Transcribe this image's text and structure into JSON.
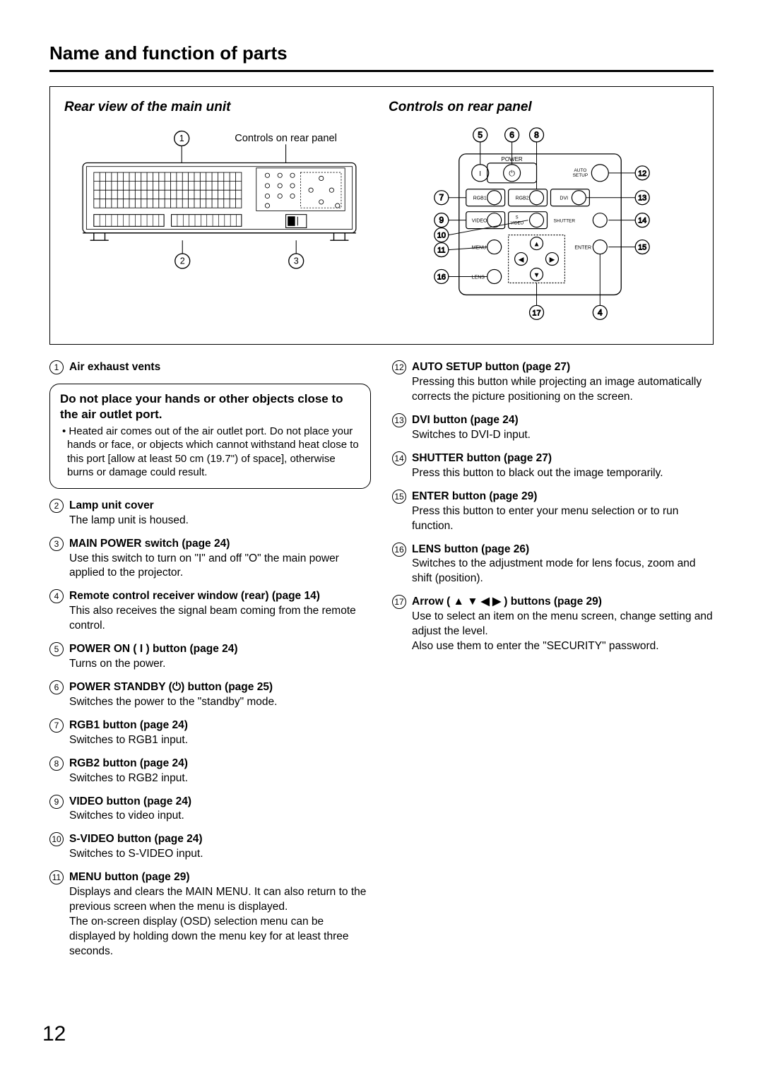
{
  "page_title": "Name and function of parts",
  "page_number": "12",
  "diagrams": {
    "left_heading": "Rear view of the main unit",
    "right_heading": "Controls on rear panel",
    "left_label_text": "Controls on rear panel",
    "panel_labels": {
      "power": "POWER",
      "auto_setup_line1": "AUTO",
      "auto_setup_line2": "SETUP",
      "rgb1": "RGB1",
      "rgb2": "RGB2",
      "dvi": "DVI",
      "video": "VIDEO",
      "svideo_s": "S",
      "svideo_video": "VIDEO",
      "shutter": "SHUTTER",
      "menu": "MENU",
      "enter": "ENTER",
      "lens": "LENS"
    }
  },
  "warning": {
    "heading": "Do not place your hands or other objects close to the air outlet port.",
    "body": "• Heated air comes out of the air outlet port. Do not place your hands or face, or objects which cannot withstand heat close to this port [allow at least 50 cm (19.7\") of space], otherwise burns or damage could result."
  },
  "left_items": [
    {
      "n": "1",
      "title": "Air exhaust vents",
      "desc": ""
    },
    {
      "n": "2",
      "title": "Lamp unit cover",
      "desc": "The lamp unit is housed."
    },
    {
      "n": "3",
      "title": "MAIN POWER switch (page 24)",
      "desc": "Use this switch to turn on \"I\" and off \"O\" the main power applied to the projector."
    },
    {
      "n": "4",
      "title": "Remote control receiver window (rear) (page 14)",
      "desc": "This also receives the signal beam coming from the remote control."
    },
    {
      "n": "5",
      "title": "POWER ON ( I ) button (page 24)",
      "desc": "Turns on the power."
    },
    {
      "n": "6",
      "title": "POWER STANDBY (⏻) button (page 25)",
      "desc": "Switches the power to the \"standby\" mode."
    },
    {
      "n": "7",
      "title": "RGB1 button (page 24)",
      "desc": "Switches to RGB1 input."
    },
    {
      "n": "8",
      "title": "RGB2 button (page 24)",
      "desc": "Switches to RGB2 input."
    },
    {
      "n": "9",
      "title": "VIDEO button (page 24)",
      "desc": "Switches to video input."
    },
    {
      "n": "10",
      "title": "S-VIDEO button (page 24)",
      "desc": "Switches to S-VIDEO input."
    },
    {
      "n": "11",
      "title": "MENU button (page 29)",
      "desc": "Displays and clears the MAIN MENU. It can also return to the previous screen when the menu is displayed.\nThe on-screen display (OSD) selection menu can be displayed by holding down the menu key for at least three seconds."
    }
  ],
  "right_items": [
    {
      "n": "12",
      "title": "AUTO SETUP button (page 27)",
      "desc": "Pressing this button while projecting an image automatically corrects the picture positioning on the screen."
    },
    {
      "n": "13",
      "title": "DVI button (page 24)",
      "desc": "Switches to DVI-D input."
    },
    {
      "n": "14",
      "title": "SHUTTER button (page 27)",
      "desc": "Press this button to black out the image temporarily."
    },
    {
      "n": "15",
      "title": "ENTER button (page 29)",
      "desc": "Press this button to enter your menu selection or to run function."
    },
    {
      "n": "16",
      "title": "LENS button (page 26)",
      "desc": "Switches to the adjustment mode for lens focus, zoom and shift (position)."
    },
    {
      "n": "17",
      "title": "Arrow ( ▲ ▼ ◀ ▶ ) buttons (page 29)",
      "desc": "Use to select an item on the menu screen, change setting and adjust the level.\nAlso use them to enter the \"SECURITY\" password."
    }
  ],
  "colors": {
    "text": "#000000",
    "border": "#000000",
    "background": "#ffffff"
  }
}
